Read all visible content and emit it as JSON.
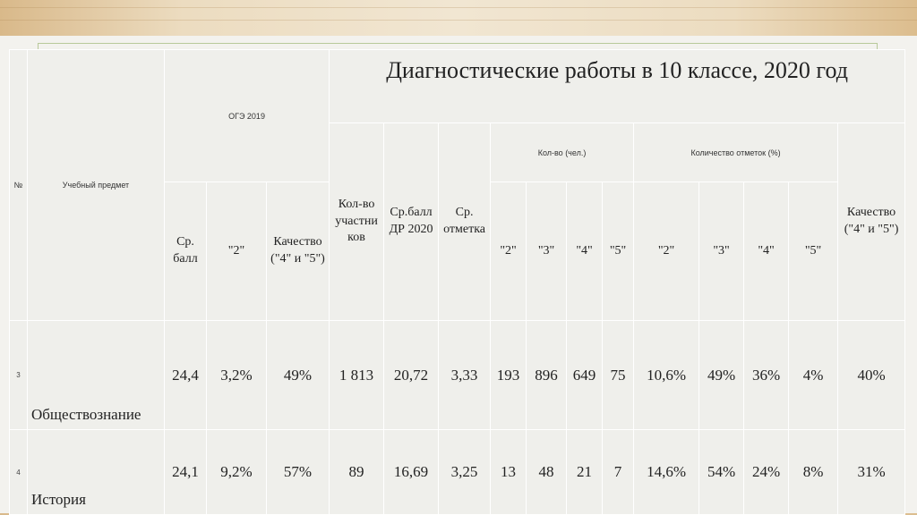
{
  "header": {
    "title": "Диагностические работы в 10 классе, 2020 год",
    "num": "№",
    "subject": "Учебный предмет",
    "oge": "ОГЭ 2019",
    "oge_avg": "Ср. балл",
    "oge_2": "\"2\"",
    "oge_quality": "Качество (\"4\" и \"5\")",
    "participants": "Кол-во участни ков",
    "avg_score": "Ср.балл ДР 2020",
    "avg_mark": "Ср. отметка",
    "count_group": "Кол-во (чел.)",
    "pct_group": "Количество отметок (%)",
    "c2": "\"2\"",
    "c3": "\"3\"",
    "c4": "\"4\"",
    "c5": "\"5\"",
    "p2": "\"2\"",
    "p3": "\"3\"",
    "p4": "\"4\"",
    "p5": "\"5\"",
    "quality": "Качество (\"4\" и \"5\")"
  },
  "rows": [
    {
      "n": "3",
      "subject": "Обществознание",
      "oge_avg": "24,4",
      "oge_2": "3,2%",
      "oge_quality": "49%",
      "participants": "1 813",
      "avg_score": "20,72",
      "avg_mark": "3,33",
      "c2": "193",
      "c3": "896",
      "c4": "649",
      "c5": "75",
      "p2": "10,6%",
      "p3": "49%",
      "p4": "36%",
      "p5": "4%",
      "quality": "40%"
    },
    {
      "n": "4",
      "subject": "История",
      "oge_avg": "24,1",
      "oge_2": "9,2%",
      "oge_quality": "57%",
      "participants": "89",
      "avg_score": "16,69",
      "avg_mark": "3,25",
      "c2": "13",
      "c3": "48",
      "c4": "21",
      "c5": "7",
      "p2": "14,6%",
      "p3": "54%",
      "p4": "24%",
      "p5": "8%",
      "quality": "31%"
    }
  ]
}
